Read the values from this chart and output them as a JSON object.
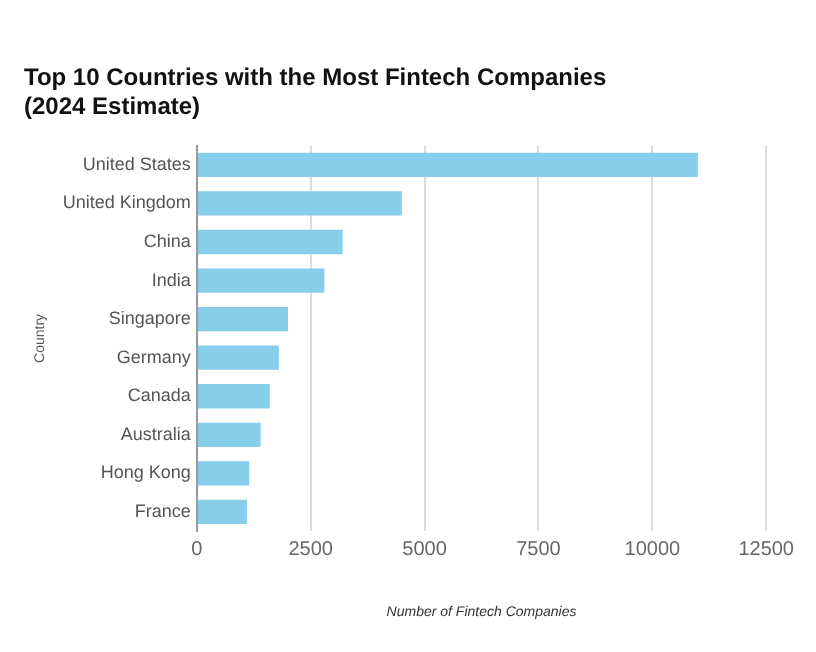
{
  "chart_data": {
    "type": "bar",
    "orientation": "horizontal",
    "title": "Top 10 Countries with the Most Fintech Companies\n(2024 Estimate)",
    "xlabel": "Number of Fintech Companies",
    "ylabel": "Country",
    "categories": [
      "United States",
      "United Kingdom",
      "China",
      "India",
      "Singapore",
      "Germany",
      "Canada",
      "Australia",
      "Hong Kong",
      "France"
    ],
    "values": [
      11000,
      4500,
      3200,
      2800,
      2000,
      1800,
      1600,
      1400,
      1150,
      1100
    ],
    "color": "#87ceeb",
    "xlim": [
      0,
      12500
    ],
    "xticks": [
      0,
      2500,
      5000,
      7500,
      10000,
      12500
    ],
    "grid": "x",
    "legend": false
  }
}
